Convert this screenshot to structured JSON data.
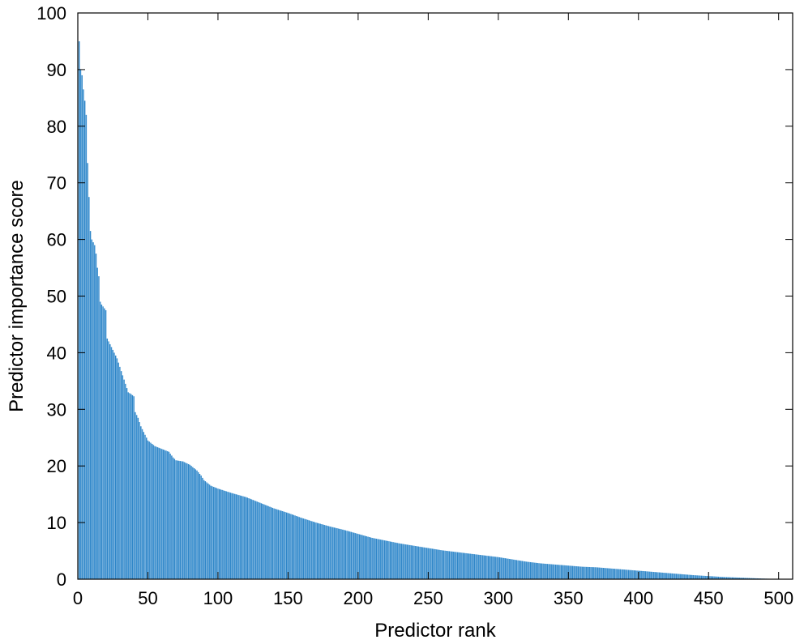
{
  "chart_data": {
    "type": "bar",
    "title": "",
    "xlabel": "Predictor rank",
    "ylabel": "Predictor importance score",
    "xlim": [
      0,
      510
    ],
    "ylim": [
      0,
      100
    ],
    "xticks": [
      0,
      50,
      100,
      150,
      200,
      250,
      300,
      350,
      400,
      450,
      500
    ],
    "yticks": [
      0,
      10,
      20,
      30,
      40,
      50,
      60,
      70,
      80,
      90,
      100
    ],
    "grid": false,
    "legend": "none",
    "bar_color": "#2f86c8",
    "n_bars": 500,
    "anchors": [
      [
        1,
        95
      ],
      [
        2,
        90
      ],
      [
        3,
        89
      ],
      [
        4,
        86.5
      ],
      [
        5,
        84.5
      ],
      [
        6,
        82
      ],
      [
        7,
        73.5
      ],
      [
        8,
        67.5
      ],
      [
        9,
        61.5
      ],
      [
        10,
        60
      ],
      [
        12,
        59
      ],
      [
        13,
        57.5
      ],
      [
        14,
        55
      ],
      [
        15,
        53.5
      ],
      [
        16,
        49
      ],
      [
        17,
        48.5
      ],
      [
        20,
        47.5
      ],
      [
        21,
        42.5
      ],
      [
        25,
        40.5
      ],
      [
        28,
        39
      ],
      [
        30,
        37.5
      ],
      [
        32,
        36
      ],
      [
        34,
        34.5
      ],
      [
        36,
        33
      ],
      [
        38,
        32.7
      ],
      [
        40,
        32.3
      ],
      [
        41,
        29.5
      ],
      [
        43,
        28.5
      ],
      [
        45,
        27
      ],
      [
        47,
        26
      ],
      [
        50,
        24.5
      ],
      [
        55,
        23.5
      ],
      [
        60,
        23
      ],
      [
        65,
        22.5
      ],
      [
        68,
        21.5
      ],
      [
        70,
        21
      ],
      [
        75,
        20.8
      ],
      [
        80,
        20.2
      ],
      [
        85,
        19.2
      ],
      [
        88,
        18.3
      ],
      [
        90,
        17.5
      ],
      [
        95,
        16.5
      ],
      [
        100,
        16
      ],
      [
        110,
        15.2
      ],
      [
        120,
        14.5
      ],
      [
        125,
        14
      ],
      [
        130,
        13.5
      ],
      [
        140,
        12.5
      ],
      [
        150,
        11.7
      ],
      [
        160,
        10.8
      ],
      [
        170,
        10
      ],
      [
        180,
        9.3
      ],
      [
        190,
        8.7
      ],
      [
        200,
        8
      ],
      [
        210,
        7.3
      ],
      [
        220,
        6.8
      ],
      [
        230,
        6.3
      ],
      [
        240,
        5.9
      ],
      [
        250,
        5.5
      ],
      [
        260,
        5.1
      ],
      [
        270,
        4.8
      ],
      [
        280,
        4.5
      ],
      [
        290,
        4.2
      ],
      [
        300,
        3.9
      ],
      [
        310,
        3.5
      ],
      [
        320,
        3.1
      ],
      [
        330,
        2.8
      ],
      [
        340,
        2.6
      ],
      [
        350,
        2.4
      ],
      [
        360,
        2.2
      ],
      [
        370,
        2.1
      ],
      [
        380,
        1.9
      ],
      [
        390,
        1.7
      ],
      [
        400,
        1.5
      ],
      [
        410,
        1.3
      ],
      [
        420,
        1.1
      ],
      [
        430,
        0.9
      ],
      [
        440,
        0.7
      ],
      [
        450,
        0.55
      ],
      [
        460,
        0.4
      ],
      [
        470,
        0.3
      ],
      [
        480,
        0.2
      ],
      [
        490,
        0.1
      ],
      [
        500,
        0.02
      ]
    ]
  }
}
